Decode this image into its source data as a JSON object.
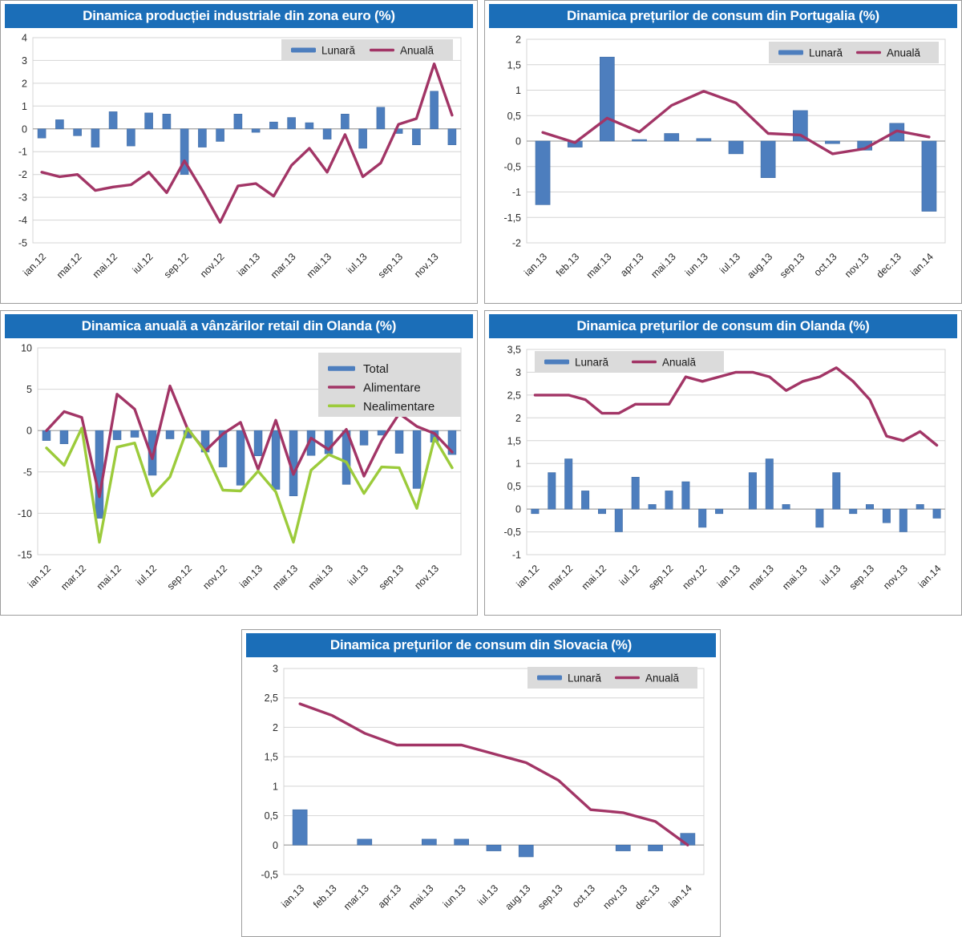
{
  "colors": {
    "title_bg": "#1b6eb8",
    "title_text": "#ffffff",
    "bar_blue": "#4d7ebe",
    "bar_blue_border": "#446fa5",
    "line_magenta": "#a23566",
    "line_green": "#9ccb3b",
    "grid": "#d4d4d4",
    "zero_axis": "#a6a6a6",
    "axis_text": "#2b2b2b",
    "legend_bg": "#dbdbdb",
    "legend_text": "#1a1a1a"
  },
  "chart_data": [
    {
      "id": "euro-industrial-production",
      "type": "bar+line",
      "title": "Dinamica producției industriale din zona euro (%)",
      "categories": [
        "ian.12",
        "feb.12",
        "mar.12",
        "apr.12",
        "mai.12",
        "iun.12",
        "iul.12",
        "aug.12",
        "sep.12",
        "oct.12",
        "nov.12",
        "dec.12",
        "ian.13",
        "feb.13",
        "mar.13",
        "apr.13",
        "mai.13",
        "iun.13",
        "iul.13",
        "aug.13",
        "sep.13",
        "oct.13",
        "nov.13",
        "dec.13"
      ],
      "x_label_step": 2,
      "ylim": [
        -5,
        4
      ],
      "yticks": [
        {
          "v": 4,
          "label": "4"
        },
        {
          "v": 3,
          "label": "3"
        },
        {
          "v": 2,
          "label": "2"
        },
        {
          "v": 1,
          "label": "1"
        },
        {
          "v": 0,
          "label": "0"
        },
        {
          "v": -1,
          "label": "-1"
        },
        {
          "v": -2,
          "label": "-2"
        },
        {
          "v": -3,
          "label": "-3"
        },
        {
          "v": -4,
          "label": "-4"
        },
        {
          "v": -5,
          "label": "-5"
        }
      ],
      "legend_position": "top-right",
      "grid": true,
      "series": [
        {
          "name": "Lunară",
          "type": "bar",
          "color_key": "bar_blue",
          "values": [
            -0.4,
            0.4,
            -0.3,
            -0.8,
            0.75,
            -0.75,
            0.7,
            0.65,
            -2.0,
            -0.8,
            -0.55,
            0.65,
            -0.15,
            0.3,
            0.5,
            0.27,
            -0.45,
            0.65,
            -0.85,
            0.95,
            -0.2,
            -0.7,
            1.65,
            -0.7
          ]
        },
        {
          "name": "Anuală",
          "type": "line",
          "color_key": "line_magenta",
          "values": [
            -1.9,
            -2.1,
            -2.0,
            -2.7,
            -2.55,
            -2.45,
            -1.9,
            -2.8,
            -1.4,
            -2.7,
            -4.1,
            -2.5,
            -2.4,
            -2.95,
            -1.6,
            -0.85,
            -1.9,
            -0.25,
            -2.1,
            -1.5,
            0.2,
            0.45,
            2.85,
            0.6
          ]
        }
      ]
    },
    {
      "id": "portugal-consumer-prices",
      "type": "bar+line",
      "title": "Dinamica prețurilor de consum din Portugalia (%)",
      "categories": [
        "ian.13",
        "feb.13",
        "mar.13",
        "apr.13",
        "mai.13",
        "iun.13",
        "iul.13",
        "aug.13",
        "sep.13",
        "oct.13",
        "nov.13",
        "dec.13",
        "ian.14"
      ],
      "x_label_step": 1,
      "ylim": [
        -2,
        2
      ],
      "yticks": [
        {
          "v": 2,
          "label": "2"
        },
        {
          "v": 1.5,
          "label": "1,5"
        },
        {
          "v": 1,
          "label": "1"
        },
        {
          "v": 0.5,
          "label": "0,5"
        },
        {
          "v": 0,
          "label": "0"
        },
        {
          "v": -0.5,
          "label": "-0,5"
        },
        {
          "v": -1,
          "label": "-1"
        },
        {
          "v": -1.5,
          "label": "-1,5"
        },
        {
          "v": -2,
          "label": "-2"
        }
      ],
      "legend_position": "top-right",
      "grid": true,
      "series": [
        {
          "name": "Lunară",
          "type": "bar",
          "color_key": "bar_blue",
          "values": [
            -1.25,
            -0.12,
            1.65,
            0.03,
            0.15,
            0.05,
            -0.25,
            -0.72,
            0.6,
            -0.05,
            -0.18,
            0.35,
            -1.38
          ]
        },
        {
          "name": "Anuală",
          "type": "line",
          "color_key": "line_magenta",
          "values": [
            0.17,
            -0.03,
            0.45,
            0.18,
            0.7,
            0.98,
            0.75,
            0.15,
            0.12,
            -0.25,
            -0.15,
            0.2,
            0.08
          ]
        }
      ]
    },
    {
      "id": "netherlands-retail-sales",
      "type": "bar+line",
      "title": "Dinamica anuală a vânzărilor retail din Olanda (%)",
      "categories": [
        "ian.12",
        "feb.12",
        "mar.12",
        "apr.12",
        "mai.12",
        "iun.12",
        "iul.12",
        "aug.12",
        "sep.12",
        "oct.12",
        "nov.12",
        "dec.12",
        "ian.13",
        "feb.13",
        "mar.13",
        "apr.13",
        "mai.13",
        "iun.13",
        "iul.13",
        "aug.13",
        "sep.13",
        "oct.13",
        "nov.13",
        "dec.13"
      ],
      "x_label_step": 2,
      "ylim": [
        -15,
        10
      ],
      "yticks": [
        {
          "v": 10,
          "label": "10"
        },
        {
          "v": 5,
          "label": "5"
        },
        {
          "v": 0,
          "label": "0"
        },
        {
          "v": -5,
          "label": "-5"
        },
        {
          "v": -10,
          "label": "-10"
        },
        {
          "v": -15,
          "label": "-15"
        }
      ],
      "legend_position": "right-vertical",
      "grid": true,
      "series": [
        {
          "name": "Total",
          "type": "bar",
          "color_key": "bar_blue",
          "values": [
            -1.2,
            -1.6,
            0,
            -10.6,
            -1.1,
            -0.8,
            -5.4,
            -1.0,
            -0.9,
            -2.6,
            -4.4,
            -6.6,
            -3.05,
            -7.1,
            -7.9,
            -3.0,
            -2.8,
            -6.5,
            -1.75,
            -0.55,
            -2.75,
            -7.0,
            -1.4,
            -2.9
          ]
        },
        {
          "name": "Alimentare",
          "type": "line",
          "color_key": "line_magenta",
          "values": [
            0.0,
            2.3,
            1.6,
            -8.0,
            4.4,
            2.6,
            -3.4,
            5.4,
            0.2,
            -2.45,
            -0.4,
            1.0,
            -4.7,
            1.25,
            -5.3,
            -0.9,
            -2.3,
            0.15,
            -5.5,
            -1.2,
            2.05,
            0.5,
            -0.35,
            -2.6
          ]
        },
        {
          "name": "Nealimentare",
          "type": "line",
          "color_key": "line_green",
          "values": [
            -2.1,
            -4.2,
            0.3,
            -13.5,
            -2.0,
            -1.5,
            -7.9,
            -5.6,
            0.3,
            -2.6,
            -7.2,
            -7.3,
            -4.9,
            -7.4,
            -13.5,
            -4.8,
            -2.9,
            -3.8,
            -7.6,
            -4.4,
            -4.5,
            -9.4,
            -0.9,
            -4.5
          ]
        }
      ]
    },
    {
      "id": "netherlands-consumer-prices",
      "type": "bar+line",
      "title": "Dinamica prețurilor de consum din Olanda (%)",
      "categories": [
        "ian.12",
        "feb.12",
        "mar.12",
        "apr.12",
        "mai.12",
        "iun.12",
        "iul.12",
        "aug.12",
        "sep.12",
        "oct.12",
        "nov.12",
        "dec.12",
        "ian.13",
        "feb.13",
        "mar.13",
        "apr.13",
        "mai.13",
        "iun.13",
        "iul.13",
        "aug.13",
        "sep.13",
        "oct.13",
        "nov.13",
        "dec.13",
        "ian.14"
      ],
      "x_label_step": 2,
      "ylim": [
        -1,
        3.5
      ],
      "yticks": [
        {
          "v": 3.5,
          "label": "3,5"
        },
        {
          "v": 3,
          "label": "3"
        },
        {
          "v": 2.5,
          "label": "2,5"
        },
        {
          "v": 2,
          "label": "2"
        },
        {
          "v": 1.5,
          "label": "1,5"
        },
        {
          "v": 1,
          "label": "1"
        },
        {
          "v": 0.5,
          "label": "0,5"
        },
        {
          "v": 0,
          "label": "0"
        },
        {
          "v": -0.5,
          "label": "-0,5"
        },
        {
          "v": -1,
          "label": "-1"
        }
      ],
      "legend_position": "top-left",
      "grid": true,
      "series": [
        {
          "name": "Lunară",
          "type": "bar",
          "color_key": "bar_blue",
          "values": [
            -0.1,
            0.8,
            1.1,
            0.4,
            -0.1,
            -0.5,
            0.7,
            0.1,
            0.4,
            0.6,
            -0.4,
            -0.1,
            0,
            0.8,
            1.1,
            0.1,
            0,
            -0.4,
            0.8,
            -0.1,
            0.1,
            -0.3,
            -0.5,
            0.1,
            -0.2
          ]
        },
        {
          "name": "Anuală",
          "type": "line",
          "color_key": "line_magenta",
          "values": [
            2.5,
            2.5,
            2.5,
            2.4,
            2.1,
            2.1,
            2.3,
            2.3,
            2.3,
            2.9,
            2.8,
            2.9,
            3.0,
            3.0,
            2.9,
            2.6,
            2.8,
            2.9,
            3.1,
            2.8,
            2.4,
            1.6,
            1.5,
            1.7,
            1.4
          ]
        }
      ]
    },
    {
      "id": "slovakia-consumer-prices",
      "type": "bar+line",
      "title": "Dinamica prețurilor de consum din Slovacia (%)",
      "categories": [
        "ian.13",
        "feb.13",
        "mar.13",
        "apr.13",
        "mai.13",
        "iun.13",
        "iul.13",
        "aug.13",
        "sep.13",
        "oct.13",
        "nov.13",
        "dec.13",
        "ian.14"
      ],
      "x_label_step": 1,
      "ylim": [
        -0.5,
        3
      ],
      "yticks": [
        {
          "v": 3,
          "label": "3"
        },
        {
          "v": 2.5,
          "label": "2,5"
        },
        {
          "v": 2,
          "label": "2"
        },
        {
          "v": 1.5,
          "label": "1,5"
        },
        {
          "v": 1,
          "label": "1"
        },
        {
          "v": 0.5,
          "label": "0,5"
        },
        {
          "v": 0,
          "label": "0"
        },
        {
          "v": -0.5,
          "label": "-0,5"
        }
      ],
      "legend_position": "top-right",
      "grid": true,
      "series": [
        {
          "name": "Lunară",
          "type": "bar",
          "color_key": "bar_blue",
          "values": [
            0.6,
            0,
            0.1,
            0,
            0.1,
            0.1,
            -0.1,
            -0.2,
            0,
            0,
            -0.1,
            -0.1,
            0.2
          ]
        },
        {
          "name": "Anuală",
          "type": "line",
          "color_key": "line_magenta",
          "values": [
            2.4,
            2.2,
            1.9,
            1.7,
            1.7,
            1.7,
            1.55,
            1.4,
            1.1,
            0.6,
            0.55,
            0.4,
            0.0
          ]
        }
      ]
    }
  ]
}
